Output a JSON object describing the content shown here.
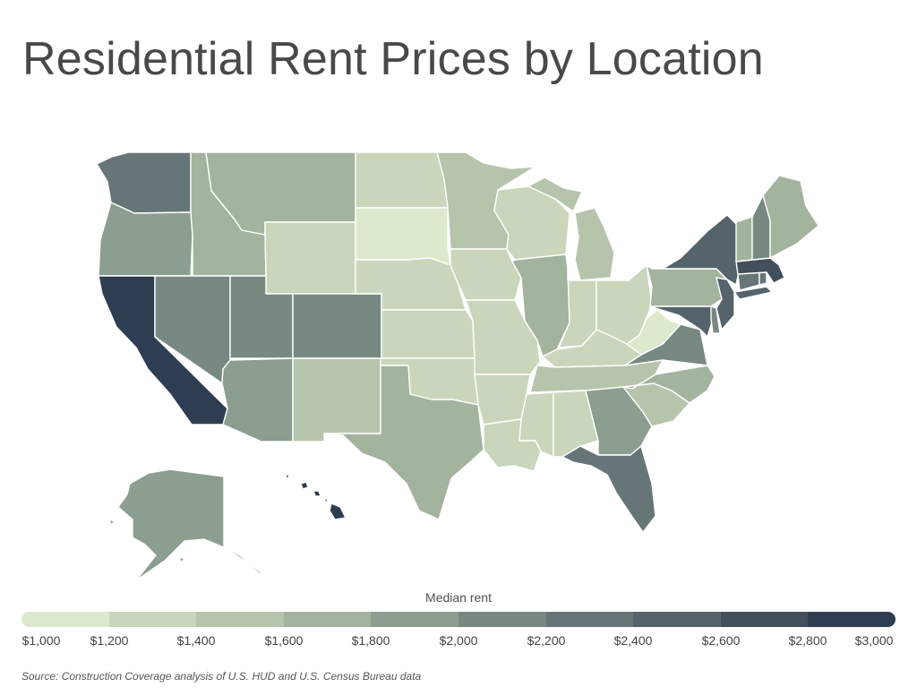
{
  "title": "Residential Rent Prices by Location",
  "legend": {
    "title": "Median rent",
    "tick_labels": [
      "$1,000",
      "$1,200",
      "$1,400",
      "$1,600",
      "$1,800",
      "$2,000",
      "$2,200",
      "$2,400",
      "$2,600",
      "$2,800",
      "$3,000"
    ],
    "colors": [
      "#dde9cc",
      "#c9d6bb",
      "#b6c4ab",
      "#a3b39d",
      "#8c9e8f",
      "#788981",
      "#657578",
      "#55636b",
      "#434f5c",
      "#2f3d52"
    ]
  },
  "source": "Source: Construction Coverage analysis of U.S. HUD and U.S. Census Bureau data",
  "map": {
    "colors": {
      "bin1": "#dde9cc",
      "bin2": "#c9d6bb",
      "bin3": "#b6c4ab",
      "bin4": "#a3b39d",
      "bin5": "#8c9e8f",
      "bin6": "#788981",
      "bin7": "#657578",
      "bin8": "#55636b",
      "bin9": "#434f5c",
      "bin10": "#2f3d52"
    },
    "states": [
      {
        "name": "Washington",
        "bin": "bin7"
      },
      {
        "name": "Oregon",
        "bin": "bin5"
      },
      {
        "name": "California",
        "bin": "bin10"
      },
      {
        "name": "Idaho",
        "bin": "bin4"
      },
      {
        "name": "Nevada",
        "bin": "bin6"
      },
      {
        "name": "Montana",
        "bin": "bin4"
      },
      {
        "name": "Wyoming",
        "bin": "bin2"
      },
      {
        "name": "Utah",
        "bin": "bin6"
      },
      {
        "name": "Arizona",
        "bin": "bin5"
      },
      {
        "name": "Colorado",
        "bin": "bin6"
      },
      {
        "name": "New Mexico",
        "bin": "bin3"
      },
      {
        "name": "North Dakota",
        "bin": "bin2"
      },
      {
        "name": "South Dakota",
        "bin": "bin1"
      },
      {
        "name": "Nebraska",
        "bin": "bin2"
      },
      {
        "name": "Kansas",
        "bin": "bin2"
      },
      {
        "name": "Oklahoma",
        "bin": "bin2"
      },
      {
        "name": "Texas",
        "bin": "bin4"
      },
      {
        "name": "Minnesota",
        "bin": "bin3"
      },
      {
        "name": "Iowa",
        "bin": "bin2"
      },
      {
        "name": "Missouri",
        "bin": "bin2"
      },
      {
        "name": "Arkansas",
        "bin": "bin2"
      },
      {
        "name": "Louisiana",
        "bin": "bin2"
      },
      {
        "name": "Wisconsin",
        "bin": "bin2"
      },
      {
        "name": "Illinois",
        "bin": "bin4"
      },
      {
        "name": "Michigan",
        "bin": "bin3"
      },
      {
        "name": "Indiana",
        "bin": "bin2"
      },
      {
        "name": "Ohio",
        "bin": "bin2"
      },
      {
        "name": "Kentucky",
        "bin": "bin2"
      },
      {
        "name": "Tennessee",
        "bin": "bin3"
      },
      {
        "name": "Mississippi",
        "bin": "bin2"
      },
      {
        "name": "Alabama",
        "bin": "bin2"
      },
      {
        "name": "Georgia",
        "bin": "bin5"
      },
      {
        "name": "Florida",
        "bin": "bin7"
      },
      {
        "name": "South Carolina",
        "bin": "bin3"
      },
      {
        "name": "North Carolina",
        "bin": "bin4"
      },
      {
        "name": "Virginia",
        "bin": "bin6"
      },
      {
        "name": "West Virginia",
        "bin": "bin1"
      },
      {
        "name": "Maryland",
        "bin": "bin8"
      },
      {
        "name": "Delaware",
        "bin": "bin6"
      },
      {
        "name": "Pennsylvania",
        "bin": "bin4"
      },
      {
        "name": "New Jersey",
        "bin": "bin8"
      },
      {
        "name": "New York",
        "bin": "bin8"
      },
      {
        "name": "Connecticut",
        "bin": "bin7"
      },
      {
        "name": "Rhode Island",
        "bin": "bin7"
      },
      {
        "name": "Massachusetts",
        "bin": "bin9"
      },
      {
        "name": "Vermont",
        "bin": "bin4"
      },
      {
        "name": "New Hampshire",
        "bin": "bin6"
      },
      {
        "name": "Maine",
        "bin": "bin4"
      },
      {
        "name": "Alaska",
        "bin": "bin5"
      },
      {
        "name": "Hawaii",
        "bin": "bin10"
      }
    ]
  }
}
